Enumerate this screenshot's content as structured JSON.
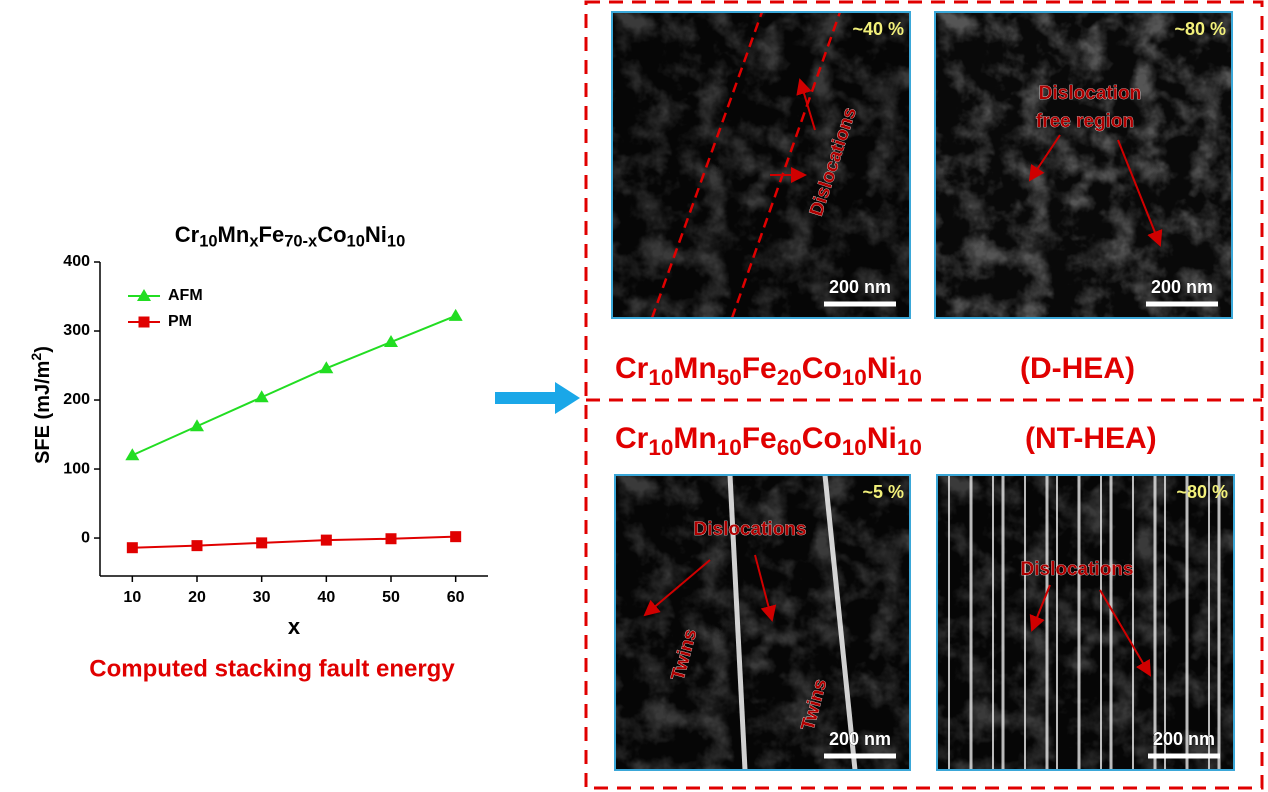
{
  "chart_data": {
    "type": "line",
    "title": [
      "Cr",
      "10",
      "Mn",
      "x",
      "Fe",
      "70-x",
      "Co",
      "10",
      "Ni",
      "10"
    ],
    "x_label": "x",
    "y_label": [
      "SFE (mJ/m",
      "2",
      ")"
    ],
    "x": [
      10,
      20,
      30,
      40,
      50,
      60
    ],
    "series": [
      {
        "name": "AFM",
        "color": "#22dd22",
        "marker": "triangle",
        "values": [
          120,
          162,
          204,
          246,
          284,
          322
        ]
      },
      {
        "name": "PM",
        "color": "#e00000",
        "marker": "square",
        "values": [
          -14,
          -11,
          -7,
          -3,
          -1,
          2
        ]
      }
    ],
    "xlim": [
      5,
      65
    ],
    "ylim": [
      -55,
      400
    ],
    "xticks": [
      10,
      20,
      30,
      40,
      50,
      60
    ],
    "yticks": [
      0,
      100,
      200,
      300,
      400
    ],
    "legend": "upper left"
  },
  "caption": "Computed stacking fault energy",
  "panels": [
    {
      "formula": [
        "Cr",
        "10",
        "Mn",
        "50",
        "Fe",
        "20",
        "Co",
        "10",
        "Ni",
        "10"
      ],
      "label": "(D-HEA)",
      "images": [
        {
          "strain": "~40 %",
          "annotations": [
            "Dislocations"
          ],
          "scale": "200 nm"
        },
        {
          "strain": "~80 %",
          "annotations": [
            "Dislocation",
            "free region"
          ],
          "scale": "200 nm"
        }
      ]
    },
    {
      "formula": [
        "Cr",
        "10",
        "Mn",
        "10",
        "Fe",
        "60",
        "Co",
        "10",
        "Ni",
        "10"
      ],
      "label": "(NT-HEA)",
      "images": [
        {
          "strain": "~5 %",
          "annotations": [
            "Dislocations",
            "Twins",
            "Twins"
          ],
          "scale": "200 nm"
        },
        {
          "strain": "~80 %",
          "annotations": [
            "Dislocations"
          ],
          "scale": "200 nm"
        }
      ]
    }
  ]
}
